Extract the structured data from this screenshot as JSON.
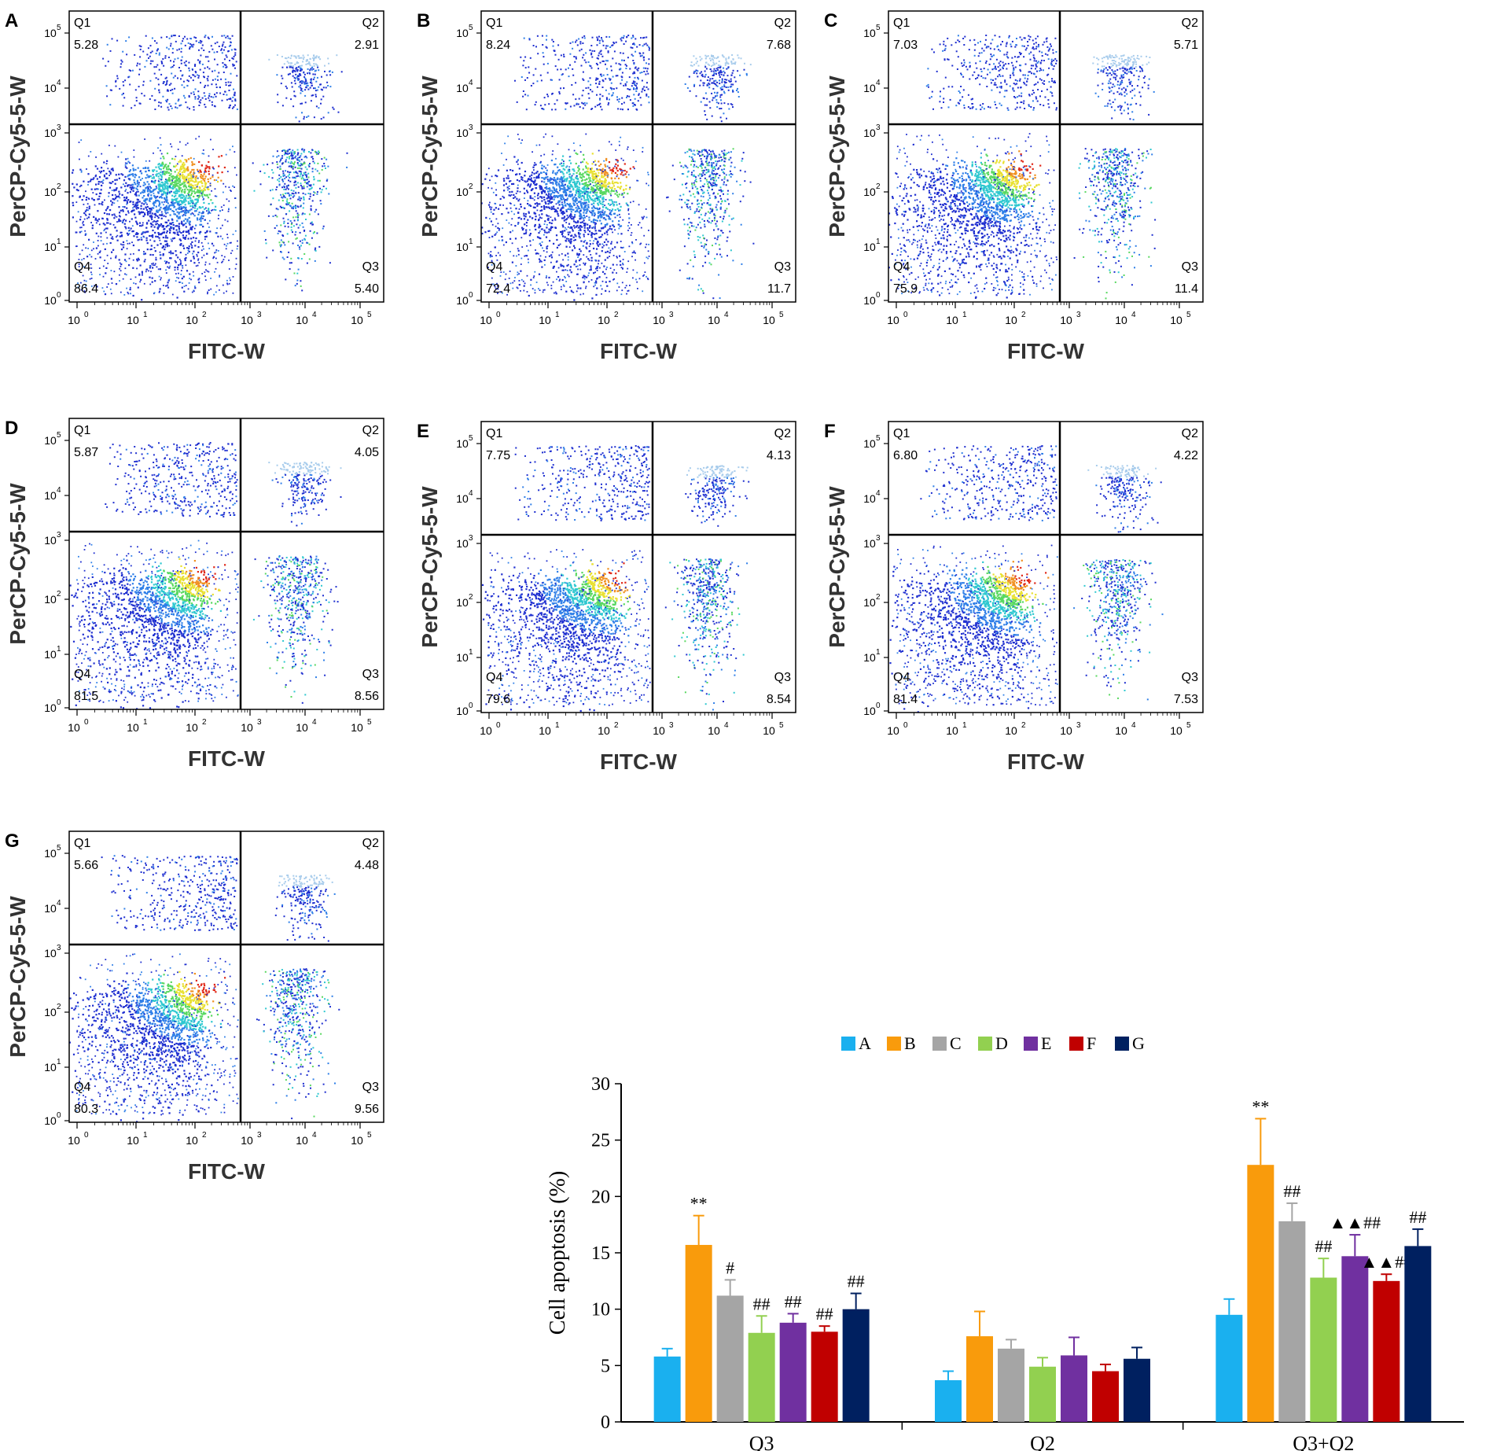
{
  "chart_data": [
    {
      "type": "scatter",
      "panel_label": "A",
      "xlabel": "FITC-W",
      "ylabel": "PerCP-Cy5-5-W",
      "x_ticks": [
        "10",
        "10",
        "10",
        "10",
        "10",
        "10"
      ],
      "x_tick_exponents": [
        "0",
        "1",
        "2",
        "3",
        "4",
        "5"
      ],
      "y_ticks": [
        "10",
        "10",
        "10",
        "10",
        "10",
        "10"
      ],
      "y_tick_exponents": [
        "0",
        "1",
        "2",
        "3",
        "4",
        "5"
      ],
      "quadrants": [
        {
          "name": "Q1",
          "percent": "5.28"
        },
        {
          "name": "Q2",
          "percent": "2.91"
        },
        {
          "name": "Q3",
          "percent": "5.40"
        },
        {
          "name": "Q4",
          "percent": "86.4"
        }
      ]
    },
    {
      "type": "scatter",
      "panel_label": "B",
      "xlabel": "FITC-W",
      "ylabel": "PerCP-Cy5-5-W",
      "x_ticks": [
        "10",
        "10",
        "10",
        "10",
        "10",
        "10"
      ],
      "x_tick_exponents": [
        "0",
        "1",
        "2",
        "3",
        "4",
        "5"
      ],
      "y_ticks": [
        "10",
        "10",
        "10",
        "10",
        "10",
        "10"
      ],
      "y_tick_exponents": [
        "0",
        "1",
        "2",
        "3",
        "4",
        "5"
      ],
      "quadrants": [
        {
          "name": "Q1",
          "percent": "8.24"
        },
        {
          "name": "Q2",
          "percent": "7.68"
        },
        {
          "name": "Q3",
          "percent": "11.7"
        },
        {
          "name": "Q4",
          "percent": "72.4"
        }
      ]
    },
    {
      "type": "scatter",
      "panel_label": "C",
      "xlabel": "FITC-W",
      "ylabel": "PerCP-Cy5-5-W",
      "x_ticks": [
        "10",
        "10",
        "10",
        "10",
        "10",
        "10"
      ],
      "x_tick_exponents": [
        "0",
        "1",
        "2",
        "3",
        "4",
        "5"
      ],
      "y_ticks": [
        "10",
        "10",
        "10",
        "10",
        "10",
        "10"
      ],
      "y_tick_exponents": [
        "0",
        "1",
        "2",
        "3",
        "4",
        "5"
      ],
      "quadrants": [
        {
          "name": "Q1",
          "percent": "7.03"
        },
        {
          "name": "Q2",
          "percent": "5.71"
        },
        {
          "name": "Q3",
          "percent": "11.4"
        },
        {
          "name": "Q4",
          "percent": "75.9"
        }
      ]
    },
    {
      "type": "scatter",
      "panel_label": "D",
      "xlabel": "FITC-W",
      "ylabel": "PerCP-Cy5-5-W",
      "x_ticks": [
        "10",
        "10",
        "10",
        "10",
        "10",
        "10"
      ],
      "x_tick_exponents": [
        "0",
        "1",
        "2",
        "3",
        "4",
        "5"
      ],
      "y_ticks": [
        "10",
        "10",
        "10",
        "10",
        "10",
        "10"
      ],
      "y_tick_exponents": [
        "0",
        "1",
        "2",
        "3",
        "4",
        "5"
      ],
      "quadrants": [
        {
          "name": "Q1",
          "percent": "5.87"
        },
        {
          "name": "Q2",
          "percent": "4.05"
        },
        {
          "name": "Q3",
          "percent": "8.56"
        },
        {
          "name": "Q4",
          "percent": "81.5"
        }
      ]
    },
    {
      "type": "scatter",
      "panel_label": "E",
      "xlabel": "FITC-W",
      "ylabel": "PerCP-Cy5-5-W",
      "x_ticks": [
        "10",
        "10",
        "10",
        "10",
        "10",
        "10"
      ],
      "x_tick_exponents": [
        "0",
        "1",
        "2",
        "3",
        "4",
        "5"
      ],
      "y_ticks": [
        "10",
        "10",
        "10",
        "10",
        "10",
        "10"
      ],
      "y_tick_exponents": [
        "0",
        "1",
        "2",
        "3",
        "4",
        "5"
      ],
      "quadrants": [
        {
          "name": "Q1",
          "percent": "7.75"
        },
        {
          "name": "Q2",
          "percent": "4.13"
        },
        {
          "name": "Q3",
          "percent": "8.54"
        },
        {
          "name": "Q4",
          "percent": "79.6"
        }
      ]
    },
    {
      "type": "scatter",
      "panel_label": "F",
      "xlabel": "FITC-W",
      "ylabel": "PerCP-Cy5-5-W",
      "x_ticks": [
        "10",
        "10",
        "10",
        "10",
        "10",
        "10"
      ],
      "x_tick_exponents": [
        "0",
        "1",
        "2",
        "3",
        "4",
        "5"
      ],
      "y_ticks": [
        "10",
        "10",
        "10",
        "10",
        "10",
        "10"
      ],
      "y_tick_exponents": [
        "0",
        "1",
        "2",
        "3",
        "4",
        "5"
      ],
      "quadrants": [
        {
          "name": "Q1",
          "percent": "6.80"
        },
        {
          "name": "Q2",
          "percent": "4.22"
        },
        {
          "name": "Q3",
          "percent": "7.53"
        },
        {
          "name": "Q4",
          "percent": "81.4"
        }
      ]
    },
    {
      "type": "scatter",
      "panel_label": "G",
      "xlabel": "FITC-W",
      "ylabel": "PerCP-Cy5-5-W",
      "x_ticks": [
        "10",
        "10",
        "10",
        "10",
        "10",
        "10"
      ],
      "x_tick_exponents": [
        "0",
        "1",
        "2",
        "3",
        "4",
        "5"
      ],
      "y_ticks": [
        "10",
        "10",
        "10",
        "10",
        "10",
        "10"
      ],
      "y_tick_exponents": [
        "0",
        "1",
        "2",
        "3",
        "4",
        "5"
      ],
      "quadrants": [
        {
          "name": "Q1",
          "percent": "5.66"
        },
        {
          "name": "Q2",
          "percent": "4.48"
        },
        {
          "name": "Q3",
          "percent": "9.56"
        },
        {
          "name": "Q4",
          "percent": "80.3"
        }
      ]
    },
    {
      "type": "bar",
      "ylabel": "Cell apoptosis (%)",
      "ylim": [
        0,
        30
      ],
      "yticks": [
        "0",
        "5",
        "10",
        "15",
        "20",
        "25",
        "30"
      ],
      "legend_position": "top",
      "categories": [
        "Q3",
        "Q2",
        "Q3+Q2"
      ],
      "series": [
        {
          "name": "A",
          "color": "#1ab0ef",
          "values": [
            5.8,
            3.7,
            9.5
          ],
          "errors": [
            0.7,
            0.8,
            1.4
          ],
          "annotations": [
            "",
            "",
            ""
          ]
        },
        {
          "name": "B",
          "color": "#f99b0c",
          "values": [
            15.7,
            7.6,
            22.8
          ],
          "errors": [
            2.6,
            2.2,
            4.1
          ],
          "annotations": [
            "**",
            "",
            "**"
          ]
        },
        {
          "name": "C",
          "color": "#a5a5a5",
          "values": [
            11.2,
            6.5,
            17.8
          ],
          "errors": [
            1.4,
            0.8,
            1.6
          ],
          "annotations": [
            "#",
            "",
            "##"
          ]
        },
        {
          "name": "D",
          "color": "#92d050",
          "values": [
            7.9,
            4.9,
            12.8
          ],
          "errors": [
            1.5,
            0.8,
            1.7
          ],
          "annotations": [
            "##",
            "",
            "##"
          ]
        },
        {
          "name": "E",
          "color": "#7030a0",
          "values": [
            8.8,
            5.9,
            14.7
          ],
          "errors": [
            0.8,
            1.6,
            1.9
          ],
          "annotations": [
            "##",
            "",
            "▲▲##"
          ]
        },
        {
          "name": "F",
          "color": "#c00000",
          "values": [
            8.0,
            4.5,
            12.5
          ],
          "errors": [
            0.5,
            0.6,
            0.6
          ],
          "annotations": [
            "##",
            "",
            "▲▲##"
          ]
        },
        {
          "name": "G",
          "color": "#002060",
          "values": [
            10.0,
            5.6,
            15.6
          ],
          "errors": [
            1.4,
            1.0,
            1.5
          ],
          "annotations": [
            "##",
            "",
            "##"
          ]
        }
      ]
    }
  ],
  "colors": {
    "density": [
      "#1f2fd0",
      "#2f7fe8",
      "#2fc8d0",
      "#58d860",
      "#e8e030",
      "#f09020",
      "#e02818"
    ],
    "q2_cluster": "#a8ccec",
    "sparse": "#3030c8",
    "axis": "#000000"
  }
}
